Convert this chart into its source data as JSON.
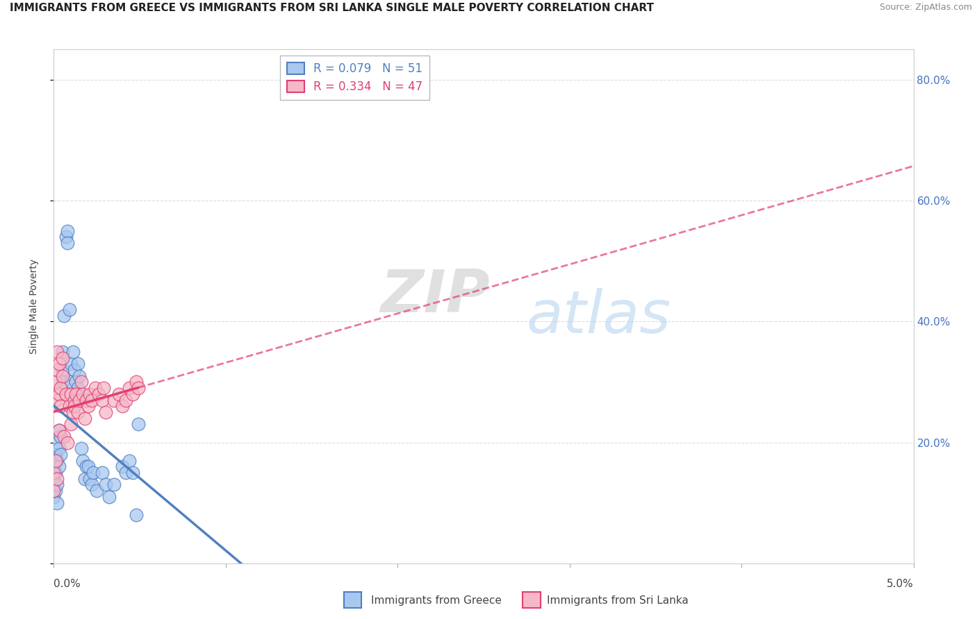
{
  "title": "IMMIGRANTS FROM GREECE VS IMMIGRANTS FROM SRI LANKA SINGLE MALE POVERTY CORRELATION CHART",
  "source": "Source: ZipAtlas.com",
  "ylabel": "Single Male Poverty",
  "ylabel_right_ticks": [
    "80.0%",
    "60.0%",
    "40.0%",
    "20.0%"
  ],
  "ylabel_right_vals": [
    0.8,
    0.6,
    0.4,
    0.2
  ],
  "legend1_label": "R = 0.079   N = 51",
  "legend2_label": "R = 0.334   N = 47",
  "color_greece": "#A8C8F0",
  "color_srilanka": "#F5B8C8",
  "color_greece_line": "#5080C0",
  "color_srilanka_line": "#E04070",
  "xlim": [
    0.0,
    0.05
  ],
  "ylim": [
    0.0,
    0.85
  ],
  "greece_x": [
    0.0,
    0.0,
    0.0,
    0.0001,
    0.0001,
    0.0001,
    0.0002,
    0.0002,
    0.0002,
    0.0002,
    0.0003,
    0.0003,
    0.0003,
    0.0004,
    0.0004,
    0.0005,
    0.0005,
    0.0005,
    0.0006,
    0.0007,
    0.0008,
    0.0008,
    0.0009,
    0.001,
    0.001,
    0.0011,
    0.0012,
    0.0013,
    0.0013,
    0.0014,
    0.0014,
    0.0015,
    0.0016,
    0.0017,
    0.0018,
    0.0019,
    0.002,
    0.0021,
    0.0022,
    0.0023,
    0.0025,
    0.0028,
    0.003,
    0.0032,
    0.0035,
    0.004,
    0.0042,
    0.0044,
    0.0046,
    0.0048,
    0.0049
  ],
  "greece_y": [
    0.16,
    0.14,
    0.11,
    0.18,
    0.15,
    0.12,
    0.2,
    0.17,
    0.13,
    0.1,
    0.22,
    0.19,
    0.16,
    0.21,
    0.18,
    0.35,
    0.32,
    0.3,
    0.41,
    0.54,
    0.55,
    0.53,
    0.42,
    0.33,
    0.3,
    0.35,
    0.32,
    0.3,
    0.27,
    0.33,
    0.29,
    0.31,
    0.19,
    0.17,
    0.14,
    0.16,
    0.16,
    0.14,
    0.13,
    0.15,
    0.12,
    0.15,
    0.13,
    0.11,
    0.13,
    0.16,
    0.15,
    0.17,
    0.15,
    0.08,
    0.23
  ],
  "srilanka_x": [
    0.0,
    0.0,
    0.0001,
    0.0001,
    0.0001,
    0.0002,
    0.0002,
    0.0002,
    0.0003,
    0.0003,
    0.0003,
    0.0004,
    0.0004,
    0.0005,
    0.0005,
    0.0006,
    0.0007,
    0.0008,
    0.0009,
    0.001,
    0.001,
    0.0011,
    0.0012,
    0.0012,
    0.0013,
    0.0014,
    0.0015,
    0.0016,
    0.0017,
    0.0018,
    0.0019,
    0.002,
    0.0021,
    0.0022,
    0.0024,
    0.0026,
    0.0028,
    0.0029,
    0.003,
    0.0035,
    0.0038,
    0.004,
    0.0042,
    0.0044,
    0.0046,
    0.0048,
    0.0049
  ],
  "srilanka_y": [
    0.15,
    0.12,
    0.3,
    0.27,
    0.17,
    0.35,
    0.32,
    0.14,
    0.33,
    0.28,
    0.22,
    0.29,
    0.26,
    0.34,
    0.31,
    0.21,
    0.28,
    0.2,
    0.26,
    0.23,
    0.28,
    0.25,
    0.27,
    0.26,
    0.28,
    0.25,
    0.27,
    0.3,
    0.28,
    0.24,
    0.27,
    0.26,
    0.28,
    0.27,
    0.29,
    0.28,
    0.27,
    0.29,
    0.25,
    0.27,
    0.28,
    0.26,
    0.27,
    0.29,
    0.28,
    0.3,
    0.29
  ],
  "watermark_zip": "ZIP",
  "watermark_atlas": "atlas",
  "background_color": "#FFFFFF",
  "grid_color": "#DDDDDD",
  "title_fontsize": 11,
  "source_fontsize": 9,
  "axis_label_fontsize": 10,
  "tick_fontsize": 11
}
